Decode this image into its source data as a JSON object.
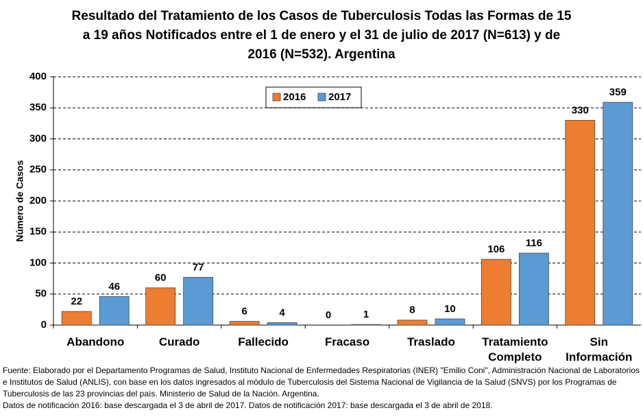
{
  "chart_data": {
    "type": "bar",
    "title": "Resultado del Tratamiento de los Casos de Tuberculosis Todas las Formas de 15 a 19 años Notificados entre el 1 de enero y el 31 de julio de 2017 (N=613) y de 2016 (N=532). Argentina",
    "y_label": "Número de Casos",
    "categories": [
      "Abandono",
      "Curado",
      "Fallecido",
      "Fracaso",
      "Traslado",
      "Tratamiento Completo",
      "Sin Información"
    ],
    "series": [
      {
        "name": "2016",
        "color": "#ed7d31",
        "values": [
          22,
          60,
          6,
          0,
          8,
          106,
          330
        ]
      },
      {
        "name": "2017",
        "color": "#5b9bd5",
        "values": [
          46,
          77,
          4,
          1,
          10,
          116,
          359
        ]
      }
    ],
    "ylim": [
      0,
      400
    ],
    "yticks": [
      0,
      50,
      100,
      150,
      200,
      250,
      300,
      350,
      400
    ],
    "grid": true,
    "legend": "top",
    "source": "Fuente: Elaborado por el Departamento Programas de Salud, Instituto Nacional de Enfermedades Respiratorias (INER) \"Emilio Coni\", Administración Nacional de Laboratorios e Institutos de Salud (ANLIS), con base en los datos ingresados al módulo de Tuberculosis del Sistema Nacional de Vigilancia de la Salud (SNVS) por los Programas de Tuberculosis de las 23 provincias del país. Ministerio de Salud de la Nación. Argentina.",
    "note": "Datos de notificación 2016: base descargada el 3 de abril de 2017. Datos de notificación 2017: base descargada el 3 de abril de 2018."
  }
}
